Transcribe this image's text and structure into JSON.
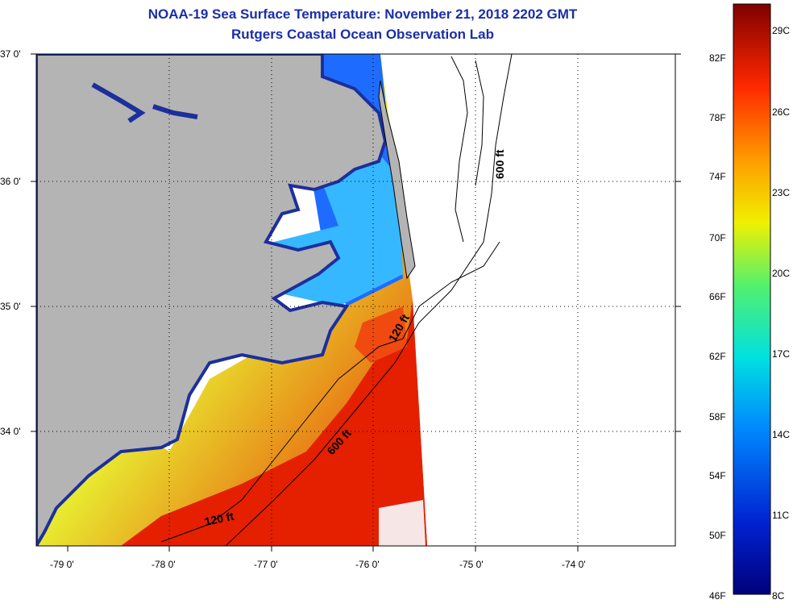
{
  "title": {
    "line1": "NOAA-19 Sea Surface Temperature:  November 21, 2018 2202 GMT",
    "line2": "Rutgers Coastal Ocean Observation Lab"
  },
  "lat_labels": [
    "37 0'",
    "36 0'",
    "35 0'",
    "34 0'"
  ],
  "lon_labels": [
    "-79 0'",
    "-78 0'",
    "-77 0'",
    "-76 0'",
    "-75 0'",
    "-74 0'"
  ],
  "contours": {
    "c120_upper": "120 ft",
    "c120_lower": "120 ft",
    "c600_upper": "600 ft",
    "c600_lower": "600 ft"
  },
  "colorbar": {
    "f_labels": [
      "82F",
      "78F",
      "74F",
      "70F",
      "66F",
      "62F",
      "58F",
      "54F",
      "50F",
      "46F"
    ],
    "c_labels": [
      "29C",
      "26C",
      "23C",
      "20C",
      "17C",
      "14C",
      "11C",
      "8C"
    ],
    "range_f": [
      46,
      86
    ],
    "range_c": [
      8,
      30
    ]
  },
  "colors": {
    "title": "#1a2ea8",
    "land": "#b4b4b4",
    "ocean_nodata": "#ffffff"
  }
}
